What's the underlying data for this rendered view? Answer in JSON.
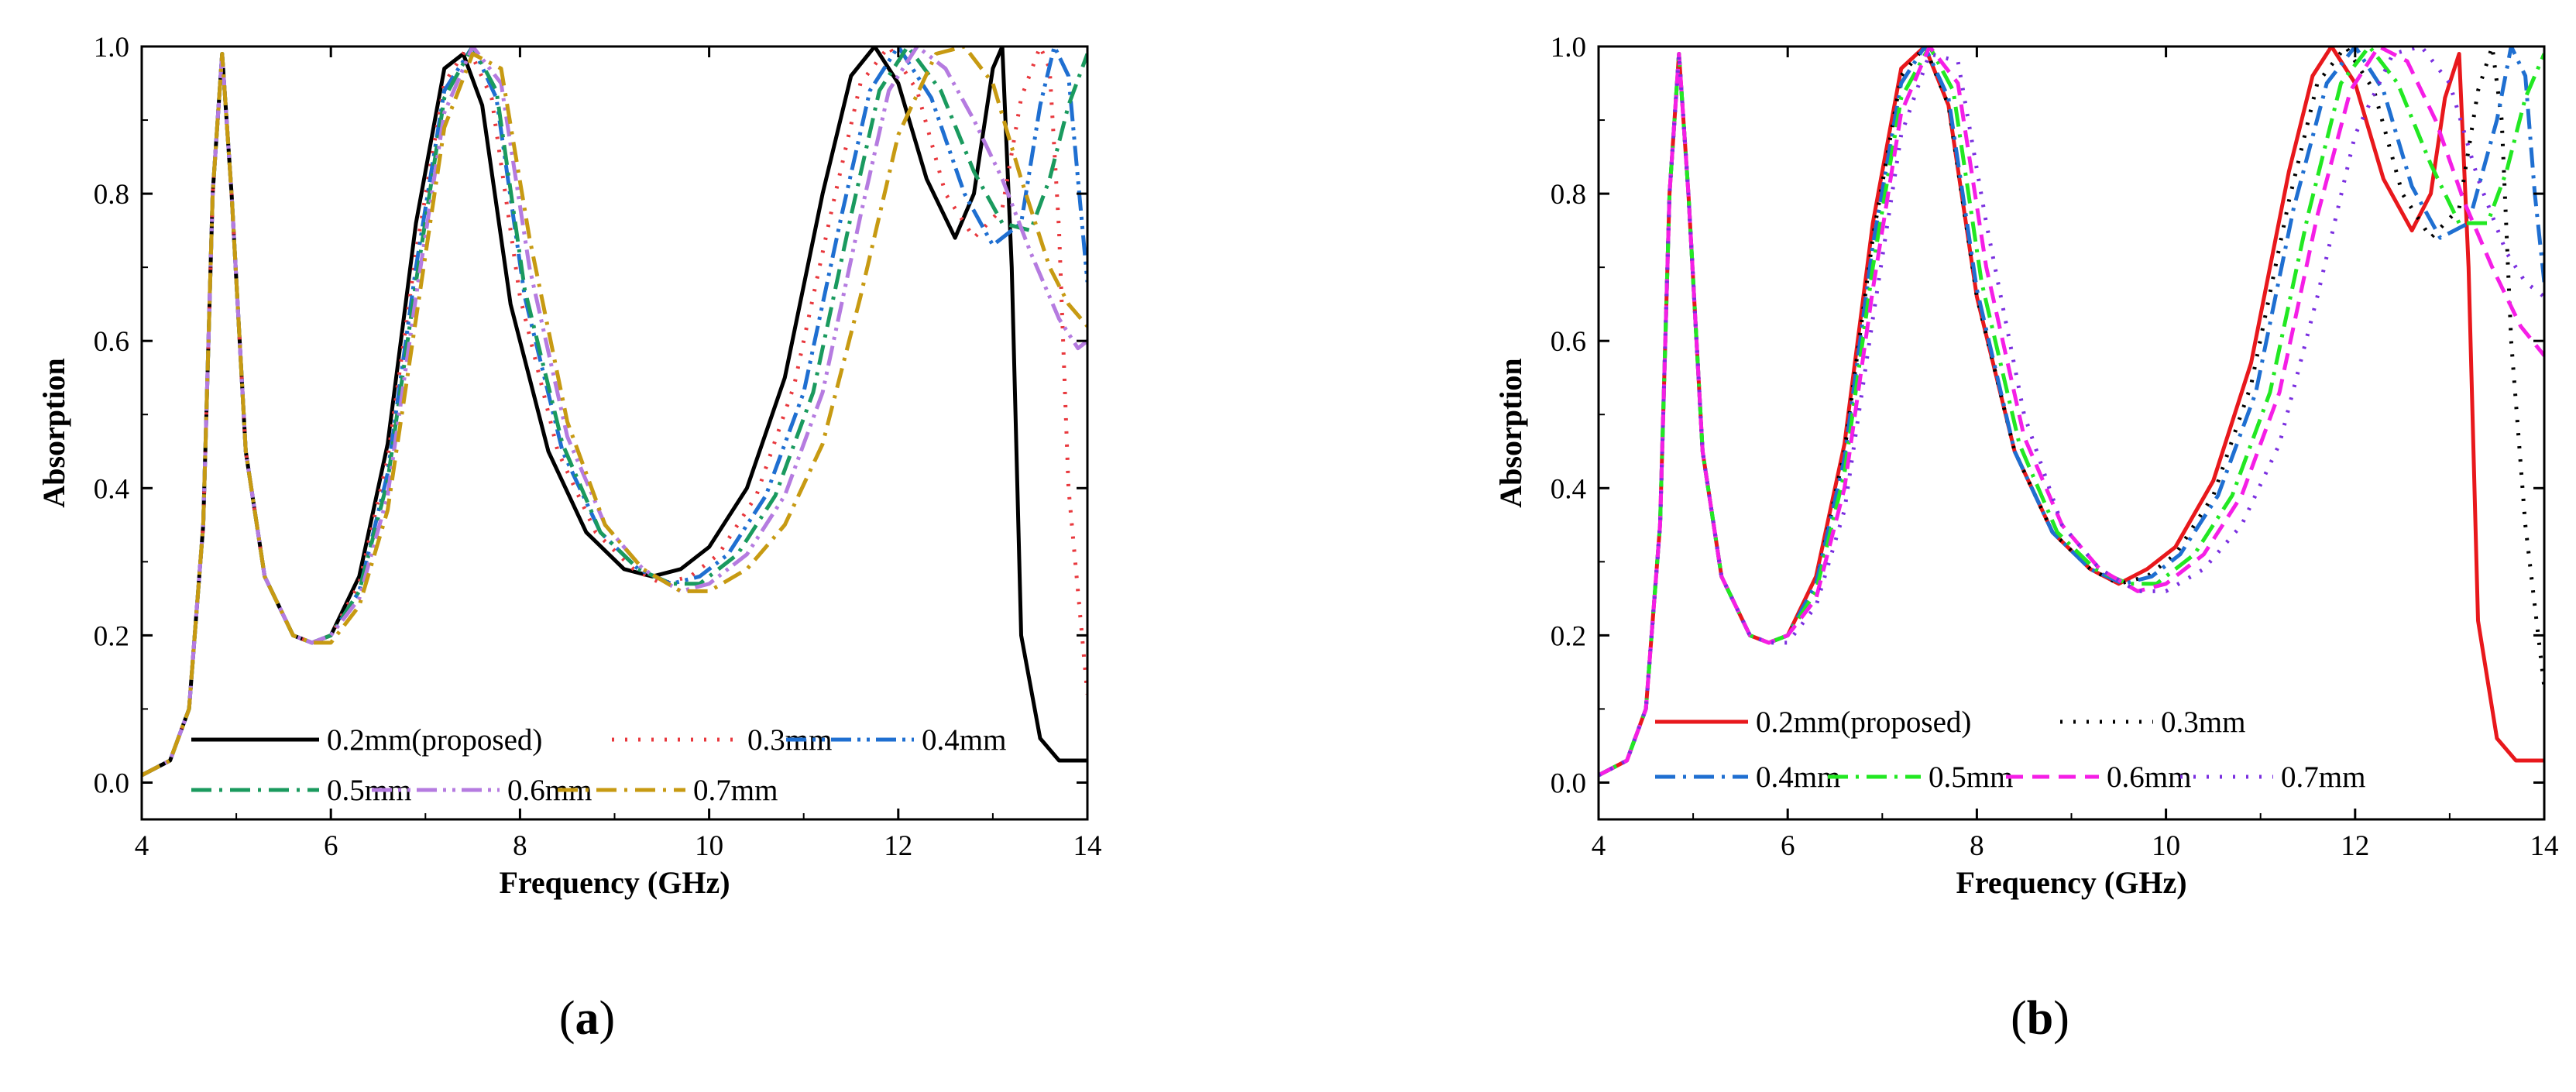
{
  "chart_data": [
    {
      "panel_label": "a",
      "type": "line",
      "xlabel": "Frequency (GHz)",
      "ylabel": "Absorption",
      "xlim": [
        4,
        14
      ],
      "ylim": [
        -0.05,
        1.0
      ],
      "x_ticks": [
        "4",
        "6",
        "8",
        "10",
        "12",
        "14"
      ],
      "y_ticks": [
        "0.0",
        "0.2",
        "0.4",
        "0.6",
        "0.8",
        "1.0"
      ],
      "legend_position": "bottom-left",
      "series": [
        {
          "name": "0.2mm(proposed)",
          "color": "#000000",
          "dash": "solid",
          "x": [
            4.0,
            4.3,
            4.5,
            4.65,
            4.75,
            4.85,
            4.95,
            5.1,
            5.3,
            5.6,
            5.8,
            6.0,
            6.3,
            6.6,
            6.9,
            7.2,
            7.4,
            7.6,
            7.9,
            8.3,
            8.7,
            9.1,
            9.4,
            9.7,
            10.0,
            10.4,
            10.8,
            11.2,
            11.5,
            11.75,
            12.0,
            12.3,
            12.6,
            12.8,
            13.0,
            13.1,
            13.2,
            13.3,
            13.5,
            13.7,
            14.0
          ],
          "values": [
            0.01,
            0.03,
            0.1,
            0.35,
            0.8,
            0.99,
            0.8,
            0.45,
            0.28,
            0.2,
            0.19,
            0.2,
            0.28,
            0.46,
            0.76,
            0.97,
            0.99,
            0.92,
            0.65,
            0.45,
            0.34,
            0.29,
            0.28,
            0.29,
            0.32,
            0.4,
            0.55,
            0.8,
            0.96,
            1.0,
            0.95,
            0.82,
            0.74,
            0.8,
            0.97,
            1.0,
            0.7,
            0.2,
            0.06,
            0.03,
            0.03
          ]
        },
        {
          "name": "0.3mm",
          "color": "#e8383d",
          "dash": "dot",
          "x": [
            4.0,
            4.3,
            4.5,
            4.65,
            4.75,
            4.85,
            4.95,
            5.1,
            5.3,
            5.6,
            5.8,
            6.0,
            6.3,
            6.6,
            6.9,
            7.2,
            7.45,
            7.7,
            8.0,
            8.4,
            8.8,
            9.2,
            9.5,
            9.8,
            10.1,
            10.5,
            10.9,
            11.3,
            11.6,
            11.9,
            12.2,
            12.5,
            12.8,
            13.1,
            13.3,
            13.5,
            13.6,
            13.7,
            13.8,
            14.0
          ],
          "values": [
            0.01,
            0.03,
            0.1,
            0.35,
            0.8,
            0.99,
            0.8,
            0.45,
            0.28,
            0.2,
            0.19,
            0.2,
            0.27,
            0.44,
            0.72,
            0.95,
            1.0,
            0.93,
            0.66,
            0.45,
            0.34,
            0.29,
            0.27,
            0.28,
            0.31,
            0.39,
            0.54,
            0.78,
            0.95,
            1.0,
            0.94,
            0.8,
            0.74,
            0.78,
            0.93,
            1.0,
            0.97,
            0.75,
            0.4,
            0.12
          ]
        },
        {
          "name": "0.4mm",
          "color": "#1f6fd1",
          "dash": "dashdotdot",
          "x": [
            4.0,
            4.3,
            4.5,
            4.65,
            4.75,
            4.85,
            4.95,
            5.1,
            5.3,
            5.6,
            5.8,
            6.0,
            6.3,
            6.6,
            6.9,
            7.2,
            7.5,
            7.75,
            8.05,
            8.45,
            8.85,
            9.25,
            9.6,
            9.9,
            10.2,
            10.6,
            11.0,
            11.4,
            11.7,
            12.0,
            12.35,
            12.7,
            13.0,
            13.3,
            13.5,
            13.65,
            13.8,
            13.9,
            14.0
          ],
          "values": [
            0.01,
            0.03,
            0.1,
            0.35,
            0.8,
            0.99,
            0.8,
            0.45,
            0.28,
            0.2,
            0.19,
            0.2,
            0.26,
            0.42,
            0.7,
            0.94,
            1.0,
            0.93,
            0.66,
            0.45,
            0.34,
            0.29,
            0.27,
            0.28,
            0.31,
            0.39,
            0.53,
            0.77,
            0.94,
            1.0,
            0.93,
            0.8,
            0.73,
            0.76,
            0.92,
            1.0,
            0.96,
            0.82,
            0.68
          ]
        },
        {
          "name": "0.5mm",
          "color": "#1a9a5e",
          "dash": "dashdot",
          "x": [
            4.0,
            4.3,
            4.5,
            4.65,
            4.75,
            4.85,
            4.95,
            5.1,
            5.3,
            5.6,
            5.8,
            6.0,
            6.3,
            6.6,
            6.9,
            7.2,
            7.5,
            7.75,
            8.05,
            8.45,
            8.85,
            9.25,
            9.6,
            9.9,
            10.3,
            10.7,
            11.1,
            11.5,
            11.8,
            12.1,
            12.45,
            12.8,
            13.1,
            13.4,
            13.6,
            13.8,
            14.0
          ],
          "values": [
            0.01,
            0.03,
            0.1,
            0.35,
            0.8,
            0.99,
            0.8,
            0.45,
            0.28,
            0.2,
            0.19,
            0.2,
            0.26,
            0.41,
            0.68,
            0.93,
            1.0,
            0.94,
            0.67,
            0.46,
            0.34,
            0.29,
            0.27,
            0.27,
            0.31,
            0.39,
            0.53,
            0.77,
            0.94,
            1.0,
            0.94,
            0.83,
            0.76,
            0.75,
            0.82,
            0.92,
            0.99
          ]
        },
        {
          "name": "0.6mm",
          "color": "#b57be0",
          "dash": "dashdotdot",
          "x": [
            4.0,
            4.3,
            4.5,
            4.65,
            4.75,
            4.85,
            4.95,
            5.1,
            5.3,
            5.6,
            5.8,
            6.0,
            6.3,
            6.6,
            6.9,
            7.2,
            7.5,
            7.8,
            8.1,
            8.5,
            8.9,
            9.3,
            9.7,
            10.0,
            10.4,
            10.8,
            11.2,
            11.6,
            11.9,
            12.2,
            12.5,
            12.8,
            13.1,
            13.4,
            13.7,
            13.9,
            14.0
          ],
          "values": [
            0.01,
            0.03,
            0.1,
            0.35,
            0.8,
            0.99,
            0.8,
            0.45,
            0.28,
            0.2,
            0.19,
            0.2,
            0.25,
            0.39,
            0.66,
            0.91,
            1.0,
            0.95,
            0.7,
            0.47,
            0.35,
            0.29,
            0.26,
            0.27,
            0.31,
            0.39,
            0.53,
            0.77,
            0.94,
            1.0,
            0.97,
            0.9,
            0.82,
            0.72,
            0.63,
            0.59,
            0.6
          ]
        },
        {
          "name": "0.7mm",
          "color": "#c79a12",
          "dash": "dashdot",
          "x": [
            4.0,
            4.3,
            4.5,
            4.65,
            4.75,
            4.85,
            4.95,
            5.1,
            5.3,
            5.6,
            5.8,
            6.0,
            6.3,
            6.6,
            6.9,
            7.2,
            7.5,
            7.8,
            8.1,
            8.5,
            8.9,
            9.3,
            9.7,
            10.0,
            10.4,
            10.8,
            11.2,
            11.6,
            12.0,
            12.4,
            12.7,
            13.0,
            13.3,
            13.6,
            13.8,
            14.0
          ],
          "values": [
            0.01,
            0.03,
            0.1,
            0.35,
            0.8,
            0.99,
            0.8,
            0.45,
            0.28,
            0.2,
            0.19,
            0.19,
            0.24,
            0.37,
            0.63,
            0.89,
            0.99,
            0.97,
            0.74,
            0.49,
            0.35,
            0.29,
            0.26,
            0.26,
            0.29,
            0.35,
            0.46,
            0.66,
            0.88,
            0.99,
            1.0,
            0.95,
            0.82,
            0.7,
            0.65,
            0.62
          ]
        }
      ]
    },
    {
      "panel_label": "b",
      "type": "line",
      "xlabel": "Frequency (GHz)",
      "ylabel": "Absorption",
      "xlim": [
        4,
        14
      ],
      "ylim": [
        -0.05,
        1.0
      ],
      "x_ticks": [
        "4",
        "6",
        "8",
        "10",
        "12",
        "14"
      ],
      "y_ticks": [
        "0.0",
        "0.2",
        "0.4",
        "0.6",
        "0.8",
        "1.0"
      ],
      "legend_position": "bottom-left",
      "series": [
        {
          "name": "0.2mm(proposed)",
          "color": "#e8181c",
          "dash": "solid",
          "x": [
            4.0,
            4.3,
            4.5,
            4.65,
            4.75,
            4.85,
            4.95,
            5.1,
            5.3,
            5.6,
            5.8,
            6.0,
            6.3,
            6.6,
            6.9,
            7.2,
            7.45,
            7.7,
            8.0,
            8.4,
            8.8,
            9.2,
            9.5,
            9.8,
            10.1,
            10.5,
            10.9,
            11.3,
            11.55,
            11.75,
            12.0,
            12.3,
            12.6,
            12.8,
            12.95,
            13.1,
            13.2,
            13.3,
            13.5,
            13.7,
            14.0
          ],
          "values": [
            0.01,
            0.03,
            0.1,
            0.35,
            0.8,
            0.99,
            0.8,
            0.45,
            0.28,
            0.2,
            0.19,
            0.2,
            0.28,
            0.46,
            0.76,
            0.97,
            1.0,
            0.92,
            0.66,
            0.45,
            0.34,
            0.29,
            0.27,
            0.29,
            0.32,
            0.41,
            0.57,
            0.83,
            0.96,
            1.0,
            0.95,
            0.82,
            0.75,
            0.8,
            0.93,
            0.99,
            0.7,
            0.22,
            0.06,
            0.03,
            0.03
          ]
        },
        {
          "name": "0.3mm",
          "color": "#000000",
          "dash": "dot",
          "x": [
            4.0,
            4.3,
            4.5,
            4.65,
            4.75,
            4.85,
            4.95,
            5.1,
            5.3,
            5.6,
            5.8,
            6.0,
            6.3,
            6.6,
            6.9,
            7.2,
            7.45,
            7.7,
            8.0,
            8.4,
            8.8,
            9.2,
            9.5,
            9.8,
            10.1,
            10.5,
            10.9,
            11.3,
            11.6,
            11.9,
            12.2,
            12.5,
            12.8,
            13.1,
            13.3,
            13.45,
            13.55,
            13.65,
            13.8,
            14.0
          ],
          "values": [
            0.01,
            0.03,
            0.1,
            0.35,
            0.8,
            0.99,
            0.8,
            0.45,
            0.28,
            0.2,
            0.19,
            0.2,
            0.27,
            0.45,
            0.74,
            0.96,
            1.0,
            0.92,
            0.66,
            0.45,
            0.34,
            0.29,
            0.27,
            0.28,
            0.31,
            0.39,
            0.54,
            0.79,
            0.95,
            1.0,
            0.94,
            0.8,
            0.74,
            0.78,
            0.94,
            1.0,
            0.9,
            0.6,
            0.35,
            0.13
          ]
        },
        {
          "name": "0.4mm",
          "color": "#1f6fd1",
          "dash": "dashdot",
          "x": [
            4.0,
            4.3,
            4.5,
            4.65,
            4.75,
            4.85,
            4.95,
            5.1,
            5.3,
            5.6,
            5.8,
            6.0,
            6.3,
            6.6,
            6.9,
            7.2,
            7.45,
            7.7,
            8.0,
            8.4,
            8.8,
            9.2,
            9.55,
            9.85,
            10.15,
            10.55,
            10.95,
            11.35,
            11.7,
            12.0,
            12.3,
            12.6,
            12.9,
            13.2,
            13.5,
            13.65,
            13.8,
            13.9,
            14.0
          ],
          "values": [
            0.01,
            0.03,
            0.1,
            0.35,
            0.8,
            0.99,
            0.8,
            0.45,
            0.28,
            0.2,
            0.19,
            0.2,
            0.27,
            0.44,
            0.73,
            0.95,
            1.0,
            0.93,
            0.67,
            0.45,
            0.34,
            0.29,
            0.27,
            0.28,
            0.31,
            0.39,
            0.53,
            0.78,
            0.95,
            1.0,
            0.94,
            0.81,
            0.74,
            0.76,
            0.9,
            1.0,
            0.96,
            0.8,
            0.68
          ]
        },
        {
          "name": "0.5mm",
          "color": "#22e822",
          "dash": "dashdot",
          "x": [
            4.0,
            4.3,
            4.5,
            4.65,
            4.75,
            4.85,
            4.95,
            5.1,
            5.3,
            5.6,
            5.8,
            6.0,
            6.3,
            6.6,
            6.9,
            7.2,
            7.5,
            7.75,
            8.05,
            8.45,
            8.85,
            9.25,
            9.6,
            9.9,
            10.3,
            10.7,
            11.1,
            11.5,
            11.85,
            12.15,
            12.45,
            12.8,
            13.1,
            13.4,
            13.6,
            13.8,
            14.0
          ],
          "values": [
            0.01,
            0.03,
            0.1,
            0.35,
            0.8,
            0.99,
            0.8,
            0.45,
            0.28,
            0.2,
            0.19,
            0.2,
            0.26,
            0.42,
            0.7,
            0.93,
            1.0,
            0.94,
            0.68,
            0.46,
            0.34,
            0.29,
            0.27,
            0.27,
            0.31,
            0.39,
            0.53,
            0.77,
            0.95,
            1.0,
            0.95,
            0.84,
            0.76,
            0.76,
            0.83,
            0.93,
            0.99
          ]
        },
        {
          "name": "0.6mm",
          "color": "#f51ee6",
          "dash": "dash",
          "x": [
            4.0,
            4.3,
            4.5,
            4.65,
            4.75,
            4.85,
            4.95,
            5.1,
            5.3,
            5.6,
            5.8,
            6.0,
            6.3,
            6.6,
            6.9,
            7.2,
            7.5,
            7.8,
            8.1,
            8.5,
            8.9,
            9.3,
            9.7,
            10.0,
            10.4,
            10.8,
            11.2,
            11.6,
            11.95,
            12.25,
            12.55,
            12.85,
            13.15,
            13.45,
            13.75,
            14.0
          ],
          "values": [
            0.01,
            0.03,
            0.1,
            0.35,
            0.8,
            0.99,
            0.8,
            0.45,
            0.28,
            0.2,
            0.19,
            0.2,
            0.25,
            0.4,
            0.67,
            0.91,
            1.0,
            0.95,
            0.7,
            0.47,
            0.35,
            0.29,
            0.26,
            0.27,
            0.31,
            0.39,
            0.53,
            0.77,
            0.94,
            1.0,
            0.98,
            0.9,
            0.79,
            0.7,
            0.62,
            0.58
          ]
        },
        {
          "name": "0.7mm",
          "color": "#7a2fe0",
          "dash": "dot",
          "x": [
            4.0,
            4.3,
            4.5,
            4.65,
            4.75,
            4.85,
            4.95,
            5.1,
            5.3,
            5.6,
            5.8,
            6.0,
            6.3,
            6.6,
            6.9,
            7.2,
            7.5,
            7.8,
            8.1,
            8.5,
            8.9,
            9.3,
            9.7,
            10.0,
            10.4,
            10.8,
            11.2,
            11.6,
            12.0,
            12.4,
            12.7,
            13.0,
            13.3,
            13.6,
            13.8,
            14.0
          ],
          "values": [
            0.01,
            0.03,
            0.1,
            0.35,
            0.8,
            0.99,
            0.8,
            0.45,
            0.28,
            0.2,
            0.19,
            0.19,
            0.24,
            0.37,
            0.63,
            0.88,
            0.99,
            0.98,
            0.76,
            0.5,
            0.35,
            0.29,
            0.26,
            0.26,
            0.29,
            0.35,
            0.46,
            0.66,
            0.88,
            0.99,
            1.0,
            0.95,
            0.82,
            0.72,
            0.68,
            0.66
          ]
        }
      ]
    }
  ]
}
